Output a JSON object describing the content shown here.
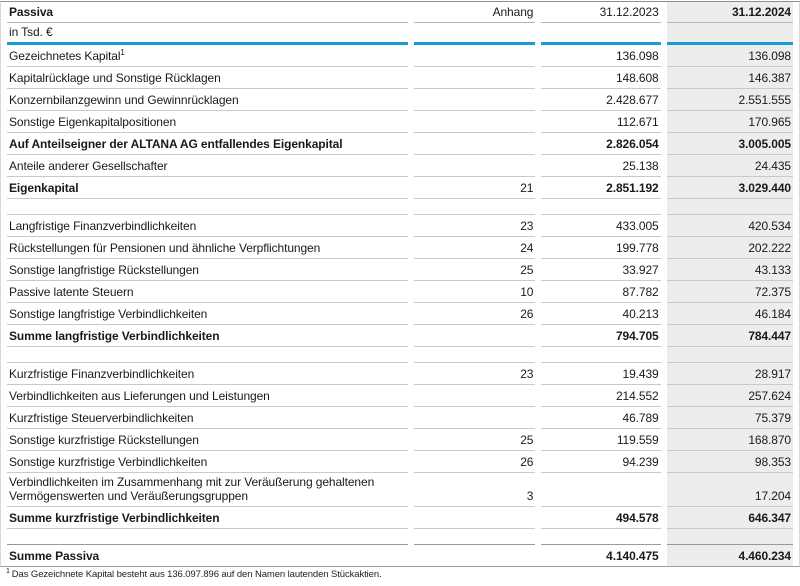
{
  "colors": {
    "accent_blue": "#149dd9",
    "highlight_column_bg": "#ededed",
    "row_border": "#c9c9c9",
    "frame_top_border": "#8f8f8f"
  },
  "table": {
    "header": {
      "title": "Passiva",
      "anhang": "Anhang",
      "col2023": "31.12.2023",
      "col2024": "31.12.2024"
    },
    "unit_label": "in Tsd. €",
    "rows": [
      {
        "type": "data",
        "label": "Gezeichnetes Kapital",
        "sup": "1",
        "anhang": "",
        "v2023": "136.098",
        "v2024": "136.098",
        "bold": false
      },
      {
        "type": "data",
        "label": "Kapitalrücklage und Sonstige Rücklagen",
        "anhang": "",
        "v2023": "148.608",
        "v2024": "146.387",
        "bold": false
      },
      {
        "type": "data",
        "label": "Konzernbilanzgewinn und Gewinnrücklagen",
        "anhang": "",
        "v2023": "2.428.677",
        "v2024": "2.551.555",
        "bold": false
      },
      {
        "type": "data",
        "label": "Sonstige Eigenkapitalpositionen",
        "anhang": "",
        "v2023": "112.671",
        "v2024": "170.965",
        "bold": false
      },
      {
        "type": "data",
        "label": "Auf Anteilseigner der ALTANA AG entfallendes Eigenkapital",
        "anhang": "",
        "v2023": "2.826.054",
        "v2024": "3.005.005",
        "bold": true
      },
      {
        "type": "data",
        "label": "Anteile anderer Gesellschafter",
        "anhang": "",
        "v2023": "25.138",
        "v2024": "24.435",
        "bold": false
      },
      {
        "type": "data",
        "label": "Eigenkapital",
        "anhang": "21",
        "v2023": "2.851.192",
        "v2024": "3.029.440",
        "bold": true
      },
      {
        "type": "spacer"
      },
      {
        "type": "data",
        "label": "Langfristige Finanzverbindlichkeiten",
        "anhang": "23",
        "v2023": "433.005",
        "v2024": "420.534",
        "bold": false
      },
      {
        "type": "data",
        "label": "Rückstellungen für Pensionen und ähnliche Verpflichtungen",
        "anhang": "24",
        "v2023": "199.778",
        "v2024": "202.222",
        "bold": false
      },
      {
        "type": "data",
        "label": "Sonstige langfristige Rückstellungen",
        "anhang": "25",
        "v2023": "33.927",
        "v2024": "43.133",
        "bold": false
      },
      {
        "type": "data",
        "label": "Passive latente Steuern",
        "anhang": "10",
        "v2023": "87.782",
        "v2024": "72.375",
        "bold": false
      },
      {
        "type": "data",
        "label": "Sonstige langfristige Verbindlichkeiten",
        "anhang": "26",
        "v2023": "40.213",
        "v2024": "46.184",
        "bold": false
      },
      {
        "type": "data",
        "label": "Summe langfristige Verbindlichkeiten",
        "anhang": "",
        "v2023": "794.705",
        "v2024": "784.447",
        "bold": true
      },
      {
        "type": "spacer"
      },
      {
        "type": "data",
        "label": "Kurzfristige Finanzverbindlichkeiten",
        "anhang": "23",
        "v2023": "19.439",
        "v2024": "28.917",
        "bold": false
      },
      {
        "type": "data",
        "label": "Verbindlichkeiten aus Lieferungen und Leistungen",
        "anhang": "",
        "v2023": "214.552",
        "v2024": "257.624",
        "bold": false
      },
      {
        "type": "data",
        "label": "Kurzfristige Steuerverbindlichkeiten",
        "anhang": "",
        "v2023": "46.789",
        "v2024": "75.379",
        "bold": false
      },
      {
        "type": "data",
        "label": "Sonstige kurzfristige Rückstellungen",
        "anhang": "25",
        "v2023": "119.559",
        "v2024": "168.870",
        "bold": false
      },
      {
        "type": "data",
        "label": "Sonstige kurzfristige Verbindlichkeiten",
        "anhang": "26",
        "v2023": "94.239",
        "v2024": "98.353",
        "bold": false
      },
      {
        "type": "data",
        "label": "Verbindlichkeiten im Zusammenhang mit zur Veräußerung gehaltenen Vermögenswerten und Veräußerungsgruppen",
        "anhang": "3",
        "v2023": "",
        "v2024": "17.204",
        "bold": false
      },
      {
        "type": "data",
        "label": "Summe kurzfristige Verbindlichkeiten",
        "anhang": "",
        "v2023": "494.578",
        "v2024": "646.347",
        "bold": true
      },
      {
        "type": "spacer",
        "strong": true
      },
      {
        "type": "data",
        "label": "Summe Passiva",
        "anhang": "",
        "v2023": "4.140.475",
        "v2024": "4.460.234",
        "bold": true,
        "last": true
      }
    ]
  },
  "footnote": {
    "sup": "1",
    "text": "Das Gezeichnete Kapital besteht aus 136.097.896 auf den Namen lautenden Stückaktien."
  }
}
